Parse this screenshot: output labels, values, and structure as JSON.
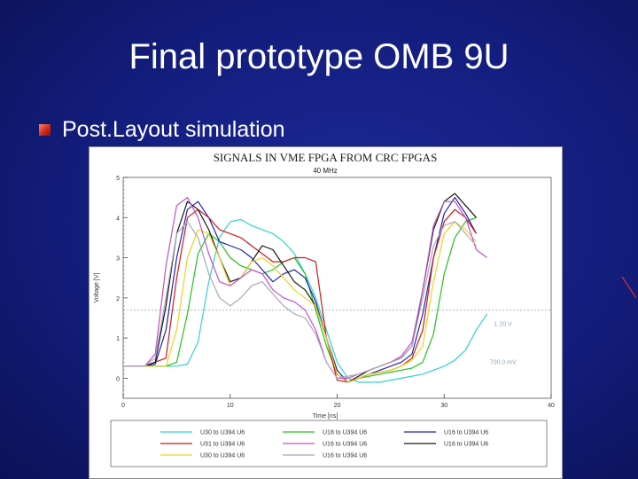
{
  "slide": {
    "title": "Final prototype OMB 9U",
    "bullet": "Post.Layout simulation"
  },
  "colors": {
    "background": "#131d7c",
    "bullet": "#d0281a",
    "title": "#ffffff"
  },
  "chart_data": {
    "type": "line",
    "title": "SIGNALS IN VME FPGA FROM CRC FPGAS",
    "subtitle": "40 MHz",
    "xlabel": "Time [ns]",
    "ylabel": "Voltage [V]",
    "xlim": [
      0,
      40
    ],
    "ylim": [
      -0.5,
      5
    ],
    "xticks": [
      "0",
      "10",
      "20",
      "30",
      "40"
    ],
    "yticks": [
      "0",
      "1",
      "2",
      "3",
      "4",
      "5"
    ],
    "annotations": [
      {
        "text": "1.20 V",
        "x": 35.5,
        "y": 1.3
      },
      {
        "text": "700.0 mV",
        "x": 35.5,
        "y": 0.35
      }
    ],
    "reference_lines": [
      1.7
    ],
    "series": [
      {
        "name": "U30 to U394 U6",
        "color": "#31d2d2",
        "x": [
          0,
          2,
          5,
          6,
          7,
          8,
          9,
          10,
          11,
          12,
          13,
          14,
          15,
          16,
          17,
          18,
          19,
          20,
          21,
          22,
          23,
          24,
          25,
          26,
          27,
          28,
          29,
          30,
          31,
          32,
          33,
          34
        ],
        "y": [
          0.3,
          0.3,
          0.3,
          0.35,
          0.9,
          2.4,
          3.5,
          3.9,
          3.95,
          3.8,
          3.7,
          3.6,
          3.4,
          3.1,
          2.6,
          2.0,
          1.2,
          0.4,
          0.0,
          -0.1,
          -0.1,
          -0.1,
          -0.05,
          0,
          0.05,
          0.1,
          0.2,
          0.3,
          0.45,
          0.7,
          1.2,
          1.6
        ]
      },
      {
        "name": "U18 to U394 U6",
        "color": "#22c222",
        "x": [
          0,
          2,
          4,
          5,
          6,
          7,
          8,
          9,
          10,
          11,
          12,
          13,
          14,
          15,
          16,
          17,
          18,
          19,
          20,
          21,
          22,
          23,
          24,
          25,
          26,
          27,
          28,
          29,
          30,
          31,
          32,
          33
        ],
        "y": [
          0.3,
          0.3,
          0.3,
          0.4,
          1.6,
          3.1,
          3.6,
          3.4,
          3.0,
          2.8,
          2.7,
          2.6,
          2.7,
          2.9,
          3.0,
          2.6,
          1.7,
          0.8,
          0.1,
          -0.1,
          0,
          0.05,
          0.1,
          0.15,
          0.2,
          0.25,
          0.4,
          1.1,
          2.6,
          3.5,
          3.9,
          4.0
        ]
      },
      {
        "name": "U16 to U394 U6",
        "color": "#2222b0",
        "x": [
          0,
          2,
          3,
          4,
          5,
          6,
          7,
          8,
          9,
          10,
          11,
          12,
          13,
          14,
          15,
          16,
          17,
          18,
          19,
          20,
          21,
          22,
          23,
          24,
          25,
          26,
          27,
          28,
          29,
          30,
          31,
          32,
          33
        ],
        "y": [
          0.3,
          0.3,
          0.35,
          1.2,
          3.0,
          4.2,
          4.4,
          4.0,
          3.4,
          3.3,
          3.2,
          3.0,
          2.7,
          2.4,
          2.6,
          2.7,
          2.5,
          1.9,
          1.0,
          0.2,
          -0.1,
          0,
          0.1,
          0.2,
          0.3,
          0.4,
          0.6,
          1.6,
          3.0,
          4.1,
          4.5,
          4.1,
          3.6
        ]
      },
      {
        "name": "U31 to U394 U6",
        "color": "#d01818",
        "x": [
          0,
          2,
          4,
          5,
          6,
          7,
          8,
          9,
          10,
          11,
          12,
          13,
          14,
          15,
          16,
          17,
          18,
          19,
          20,
          21,
          22,
          23,
          24,
          25,
          26,
          27,
          28,
          29,
          30,
          31,
          32,
          33
        ],
        "y": [
          0.3,
          0.3,
          0.5,
          2.5,
          4.0,
          4.2,
          4.0,
          3.7,
          3.6,
          3.5,
          3.3,
          3.1,
          2.9,
          2.9,
          3.0,
          3.0,
          2.9,
          1.0,
          -0.05,
          -0.1,
          0,
          0.1,
          0.15,
          0.2,
          0.3,
          0.5,
          1.2,
          3.0,
          3.9,
          4.2,
          4.0,
          3.6
        ]
      },
      {
        "name": "U16 to U394 U6",
        "color": "#161616",
        "x": [
          0,
          2,
          3,
          4,
          5,
          6,
          7,
          8,
          9,
          10,
          11,
          12,
          13,
          14,
          15,
          16,
          17,
          18,
          19,
          20,
          21,
          22,
          23,
          24,
          25,
          26,
          27,
          28,
          29,
          30,
          31,
          32,
          33
        ],
        "y": [
          0.3,
          0.3,
          0.4,
          1.8,
          3.6,
          4.4,
          4.2,
          3.7,
          3.0,
          2.4,
          2.5,
          2.9,
          3.3,
          3.2,
          2.8,
          2.4,
          2.2,
          1.8,
          1.0,
          0.1,
          -0.1,
          0.05,
          0.2,
          0.3,
          0.4,
          0.5,
          0.8,
          2.2,
          3.7,
          4.4,
          4.6,
          4.3,
          4.0
        ]
      },
      {
        "name": "U30 to U394 U6",
        "color": "#f0d020",
        "x": [
          0,
          2,
          4,
          5,
          6,
          7,
          8,
          9,
          10,
          11,
          12,
          13,
          14,
          15,
          16,
          17,
          18,
          19,
          20,
          21,
          22,
          23,
          24,
          25,
          26,
          27,
          28,
          29,
          30,
          31,
          32,
          33
        ],
        "y": [
          0.3,
          0.3,
          0.3,
          1.2,
          3.0,
          3.7,
          3.6,
          3.0,
          2.3,
          2.5,
          2.9,
          3.0,
          2.8,
          2.5,
          2.2,
          2.0,
          1.8,
          1.0,
          0.1,
          -0.1,
          0,
          0.1,
          0.15,
          0.2,
          0.3,
          0.45,
          0.8,
          2.4,
          3.6,
          3.9,
          3.7,
          3.4
        ]
      },
      {
        "name": "U16 to U394 U6",
        "color": "#c050c8",
        "x": [
          0,
          2,
          3,
          4,
          5,
          6,
          7,
          8,
          9,
          10,
          11,
          12,
          13,
          14,
          15,
          16,
          17,
          18,
          19,
          20,
          21,
          22,
          23,
          24,
          25,
          26,
          27,
          28,
          29,
          30,
          31,
          32,
          33,
          34
        ],
        "y": [
          0.3,
          0.3,
          0.6,
          2.8,
          4.3,
          4.5,
          4.0,
          3.1,
          2.4,
          2.3,
          2.5,
          2.7,
          2.6,
          2.2,
          2.0,
          1.9,
          1.7,
          1.2,
          0.4,
          0.0,
          0.0,
          0.1,
          0.2,
          0.3,
          0.4,
          0.55,
          0.9,
          2.2,
          3.8,
          4.4,
          4.4,
          4.0,
          3.2,
          3.0
        ]
      },
      {
        "name": "U16 to U394 U6",
        "color": "#a8a8b8",
        "x": [
          0,
          2,
          3,
          4,
          5,
          6,
          7,
          8,
          9,
          10,
          11,
          12,
          13,
          14,
          15,
          16,
          17,
          18,
          19,
          20,
          21,
          22,
          23,
          24,
          25,
          26,
          27,
          28,
          29,
          30,
          31,
          32,
          33
        ],
        "y": [
          0.3,
          0.3,
          0.5,
          2.0,
          3.6,
          3.9,
          3.5,
          2.6,
          2.0,
          1.8,
          2.0,
          2.3,
          2.4,
          2.1,
          1.8,
          1.6,
          1.5,
          1.1,
          0.4,
          0.0,
          0.05,
          0.1,
          0.2,
          0.3,
          0.4,
          0.5,
          0.8,
          2.0,
          3.3,
          3.8,
          3.9,
          3.6,
          3.3
        ]
      }
    ],
    "legend": [
      {
        "label": "U30 to U394 U6",
        "color": "#31d2d2"
      },
      {
        "label": "U18 to U394 U6",
        "color": "#22c222"
      },
      {
        "label": "U16 to U394 U6",
        "color": "#2222b0"
      },
      {
        "label": "U31 to U394 U6",
        "color": "#d01818"
      },
      {
        "label": "U16 to U394 U6",
        "color": "#c050c8"
      },
      {
        "label": "U16 to U394 U6",
        "color": "#161616"
      },
      {
        "label": "U30 to U394 U6",
        "color": "#f0d020"
      },
      {
        "label": "U16 to U394 U6",
        "color": "#a8a8b8"
      },
      {
        "label": "",
        "color": ""
      }
    ]
  }
}
